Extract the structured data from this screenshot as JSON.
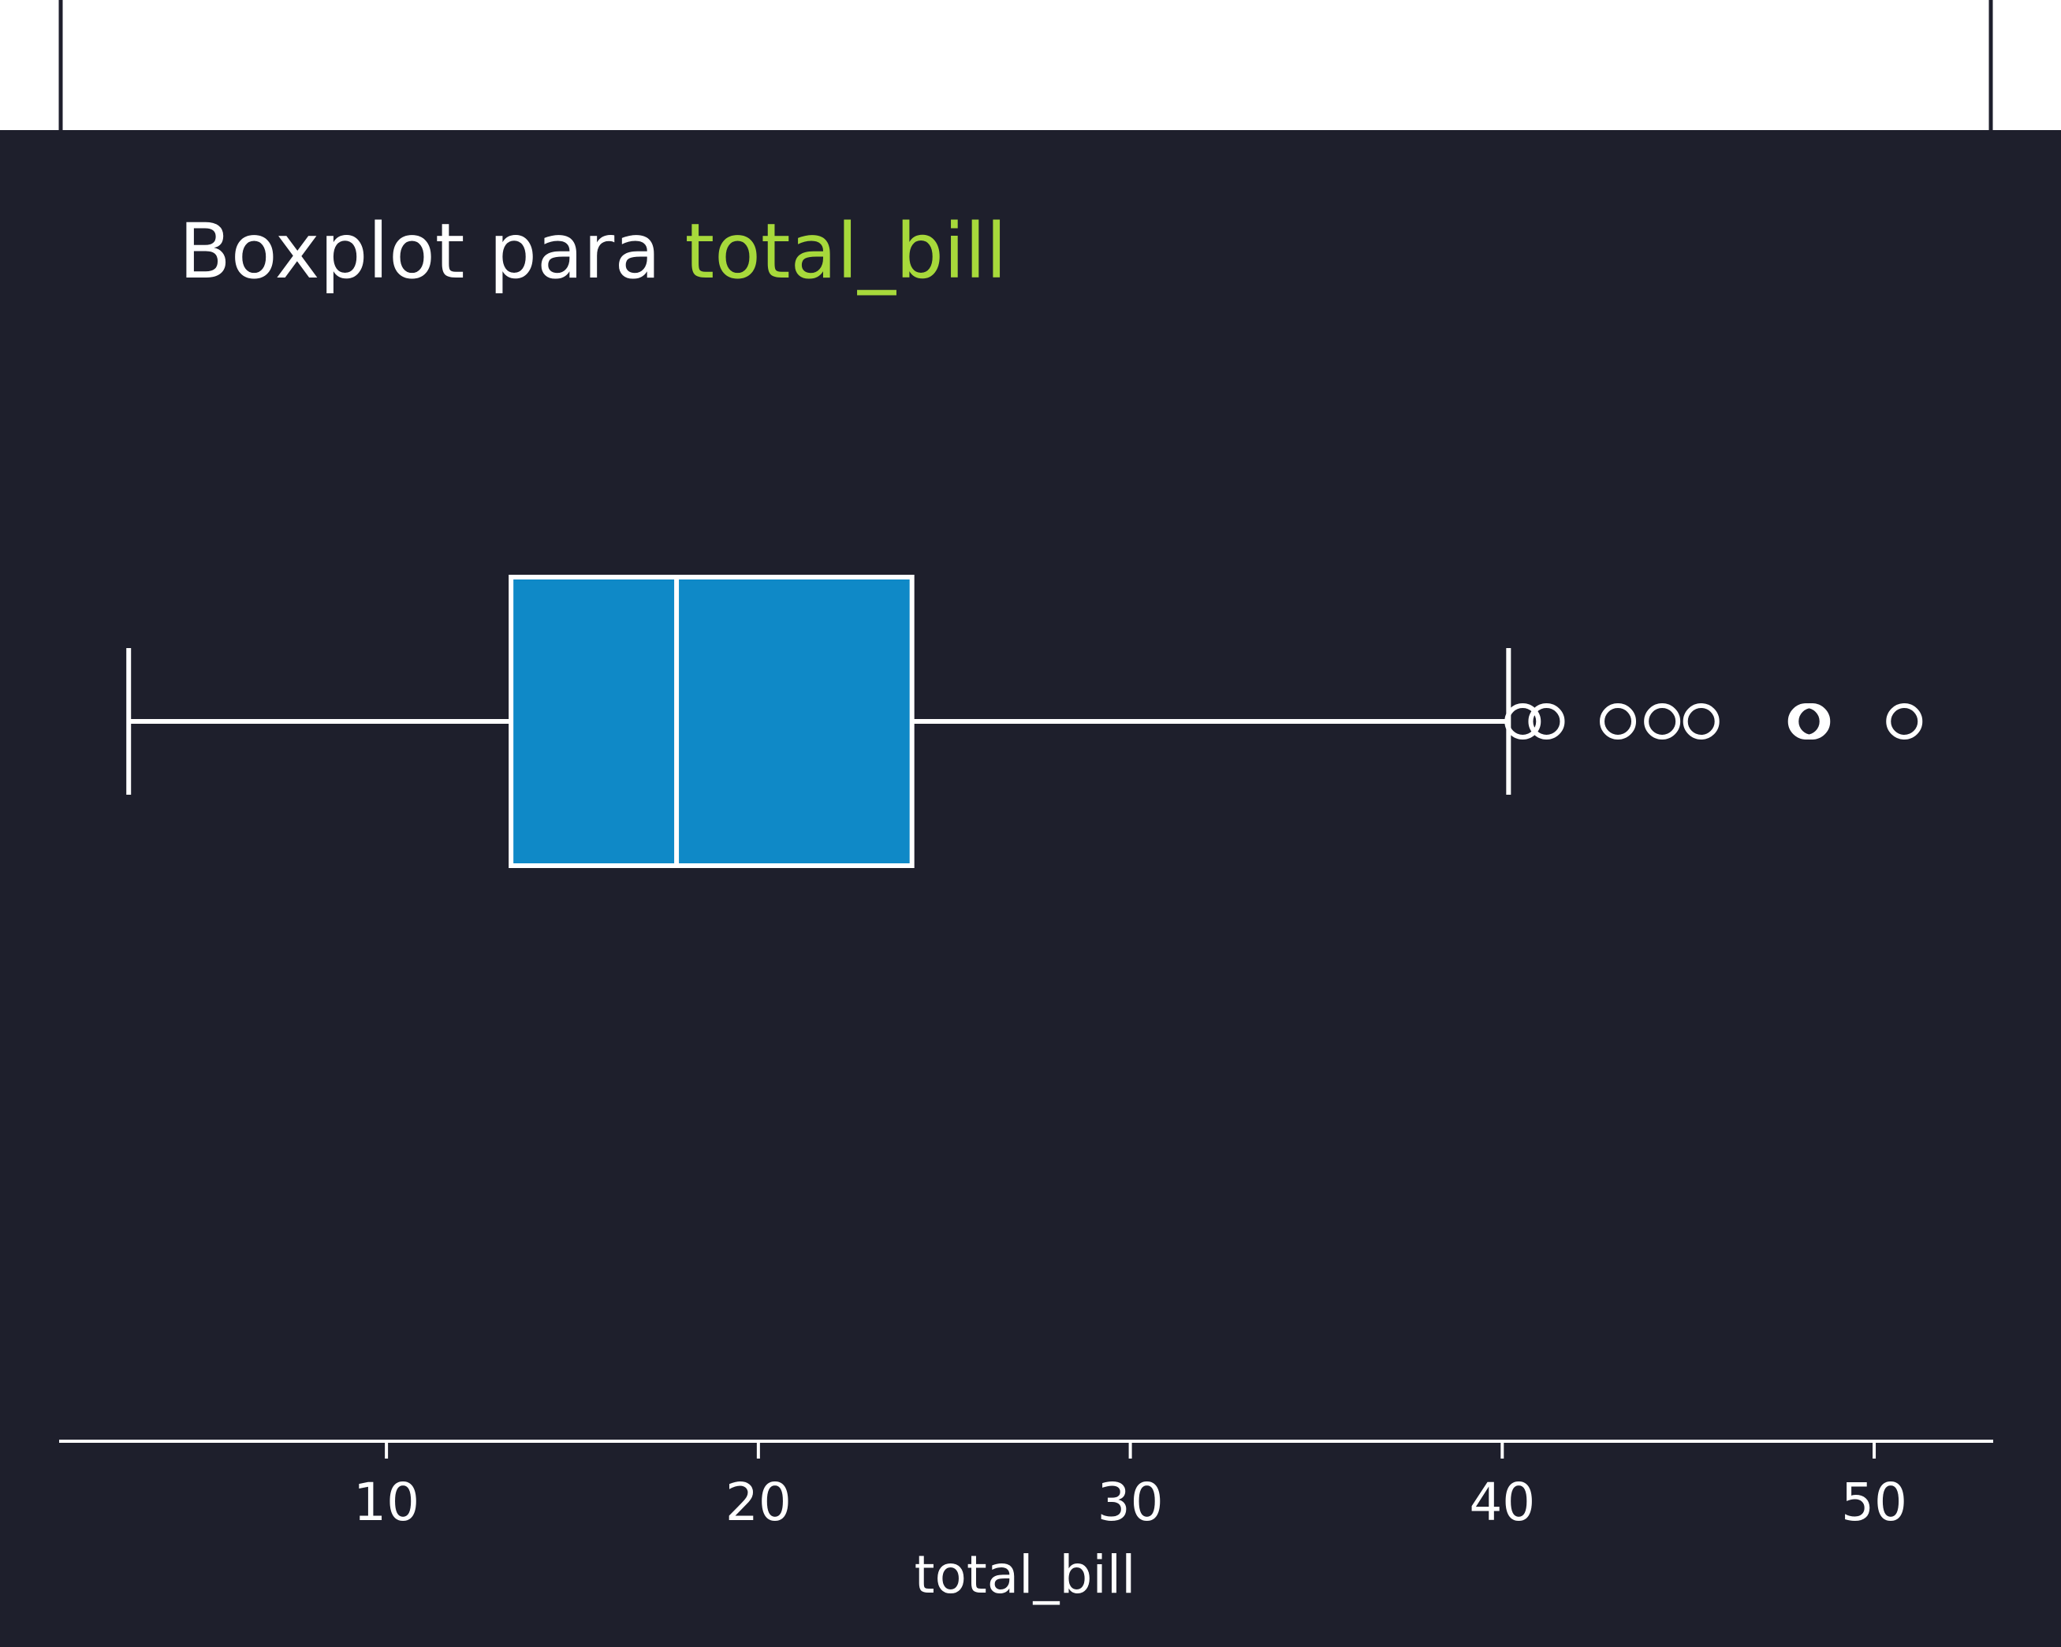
{
  "colors": {
    "background": "#1e1f2c",
    "top_band": "#ffffff",
    "frame": "#1e1f2c",
    "box_fill": "#0f89c7",
    "lines": "#ffffff",
    "title_main": "#ffffff",
    "title_accent": "#a7d93b",
    "text": "#ffffff"
  },
  "chart_data": {
    "type": "box",
    "orientation": "horizontal",
    "title_prefix": "Boxplot para ",
    "title_variable": "total_bill",
    "xlabel": "total_bill",
    "ylabel": "",
    "xlim": [
      1.2,
      53.2
    ],
    "xticks": [
      10,
      20,
      30,
      40,
      50
    ],
    "xtick_labels": [
      "10",
      "20",
      "30",
      "40",
      "50"
    ],
    "grid": false,
    "legend": "none",
    "box": {
      "whisker_low": 3.07,
      "q1": 13.35,
      "median": 17.8,
      "q3": 24.13,
      "whisker_high": 40.17
    },
    "outliers": [
      40.55,
      41.19,
      43.11,
      44.3,
      45.35,
      48.17,
      48.27,
      48.33,
      50.81
    ]
  }
}
